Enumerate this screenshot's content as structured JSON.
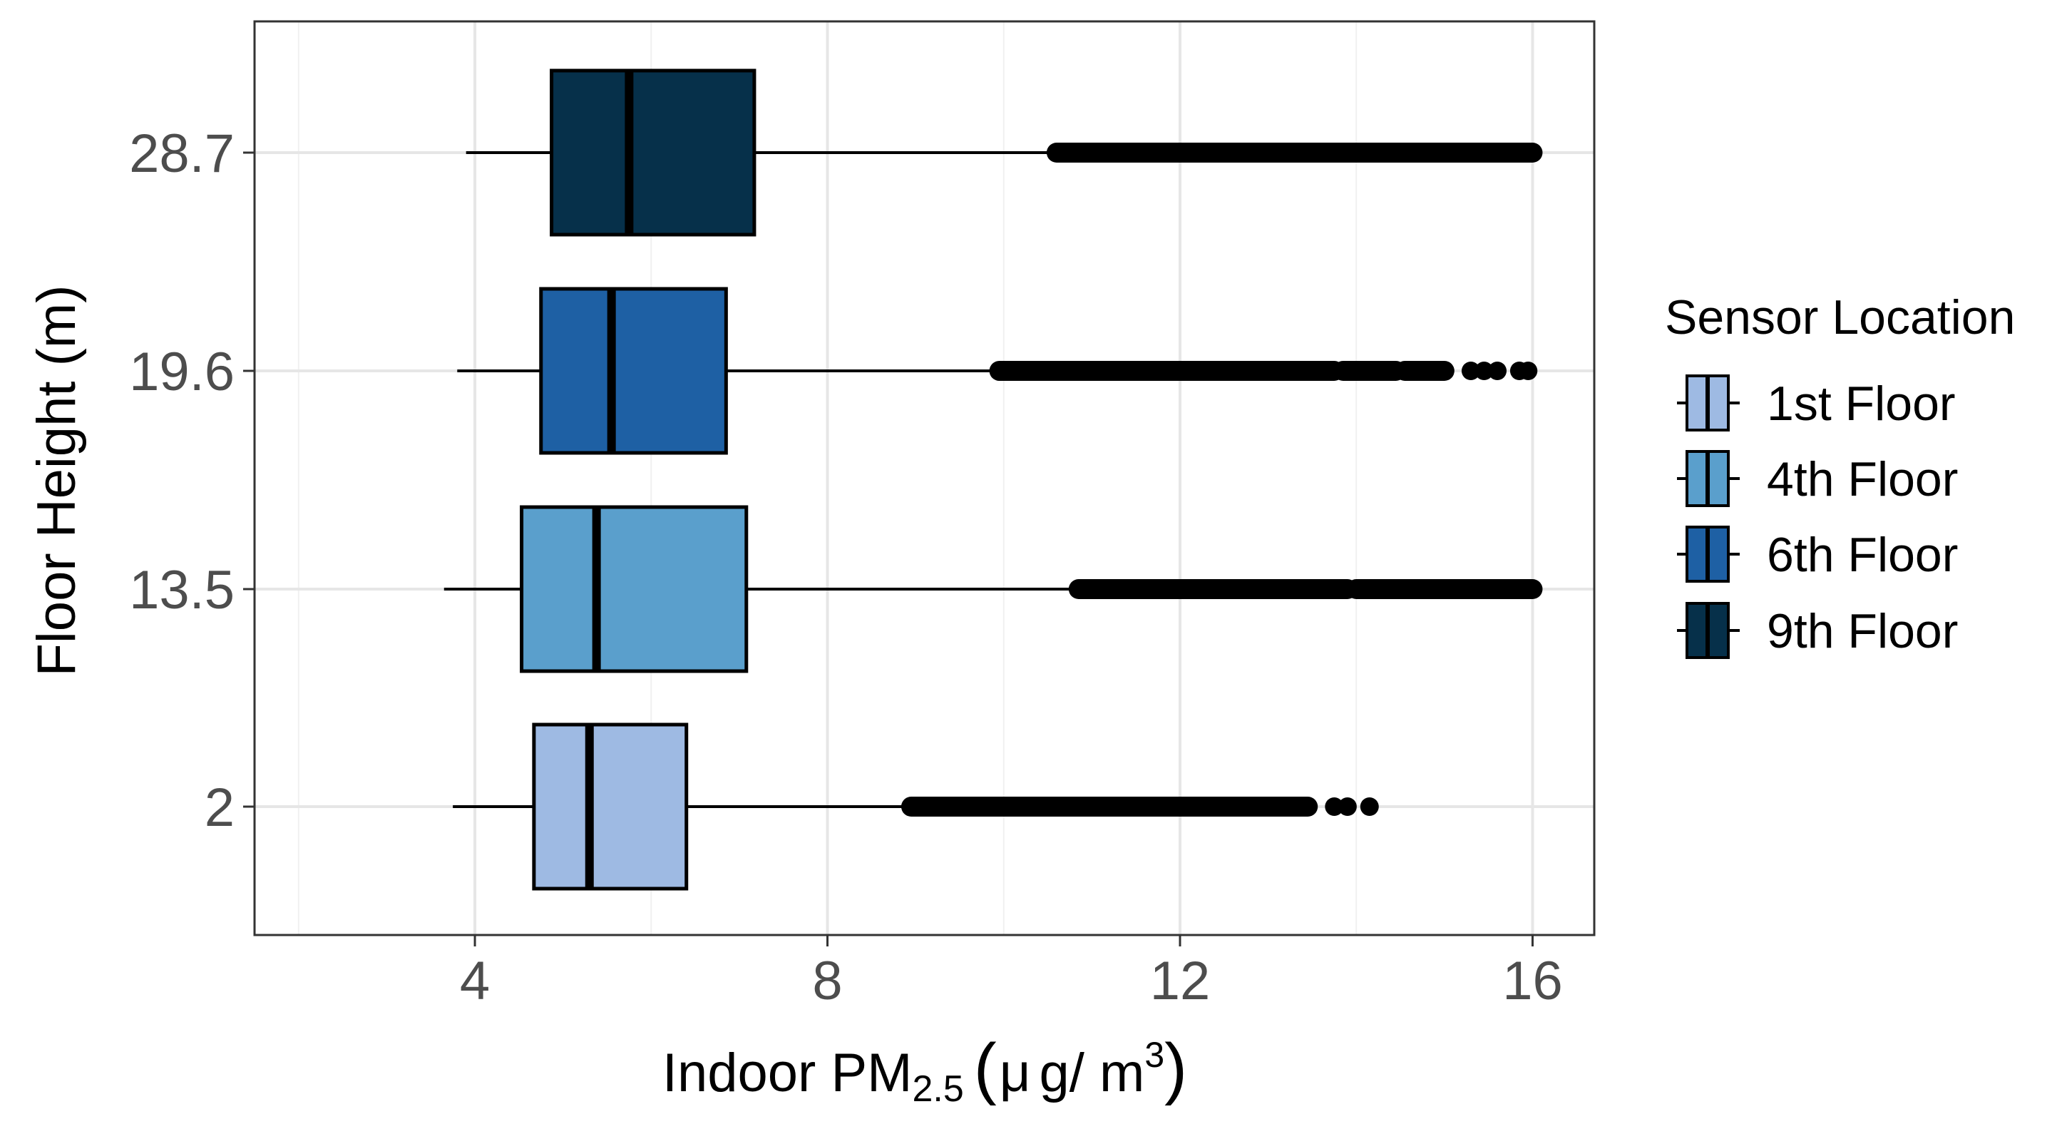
{
  "chart_data": {
    "type": "boxplot",
    "orientation": "horizontal",
    "xlabel": {
      "main": "Indoor PM",
      "sub": "2.5",
      "unit_open": "(",
      "unit_mu": "μ",
      "unit_rest": "g/ m",
      "unit_sup": "3",
      "unit_close": ")"
    },
    "ylabel": "Floor Height (m)",
    "xlim": [
      1.5,
      16.7
    ],
    "xticks": [
      4,
      8,
      12,
      16
    ],
    "xtick_labels": [
      "4",
      "8",
      "12",
      "16"
    ],
    "grid": true,
    "categories": [
      "2",
      "13.5",
      "19.6",
      "28.7"
    ],
    "series": [
      {
        "name": "1st Floor",
        "color": "#9ebae3",
        "category": "2",
        "whisker_low": 3.75,
        "q1": 4.67,
        "median": 5.3,
        "q3": 6.4,
        "whisker_high": 8.95,
        "outlier_segments": [
          [
            8.95,
            13.45
          ]
        ],
        "outliers": [
          13.75,
          13.9,
          14.15
        ]
      },
      {
        "name": "4th Floor",
        "color": "#5a9fcc",
        "category": "13.5",
        "whisker_low": 3.65,
        "q1": 4.53,
        "median": 5.38,
        "q3": 7.08,
        "whisker_high": 10.85,
        "outlier_segments": [
          [
            10.85,
            13.9
          ],
          [
            14.0,
            16.0
          ]
        ],
        "outliers": []
      },
      {
        "name": "6th Floor",
        "color": "#1e60a4",
        "category": "19.6",
        "whisker_low": 3.8,
        "q1": 4.75,
        "median": 5.55,
        "q3": 6.85,
        "whisker_high": 9.95,
        "outlier_segments": [
          [
            9.95,
            13.75
          ],
          [
            13.85,
            14.45
          ],
          [
            14.55,
            15.0
          ]
        ],
        "outliers": [
          15.3,
          15.45,
          15.6,
          15.85,
          15.95
        ]
      },
      {
        "name": "9th Floor",
        "color": "#06304a",
        "category": "28.7",
        "whisker_low": 3.9,
        "q1": 4.87,
        "median": 5.75,
        "q3": 7.17,
        "whisker_high": 10.6,
        "outlier_segments": [
          [
            10.6,
            16.0
          ]
        ],
        "outliers": []
      }
    ],
    "legend": {
      "title": "Sensor Location",
      "placement": "right",
      "entries": [
        "1st Floor",
        "4th Floor",
        "6th Floor",
        "9th Floor"
      ]
    }
  }
}
